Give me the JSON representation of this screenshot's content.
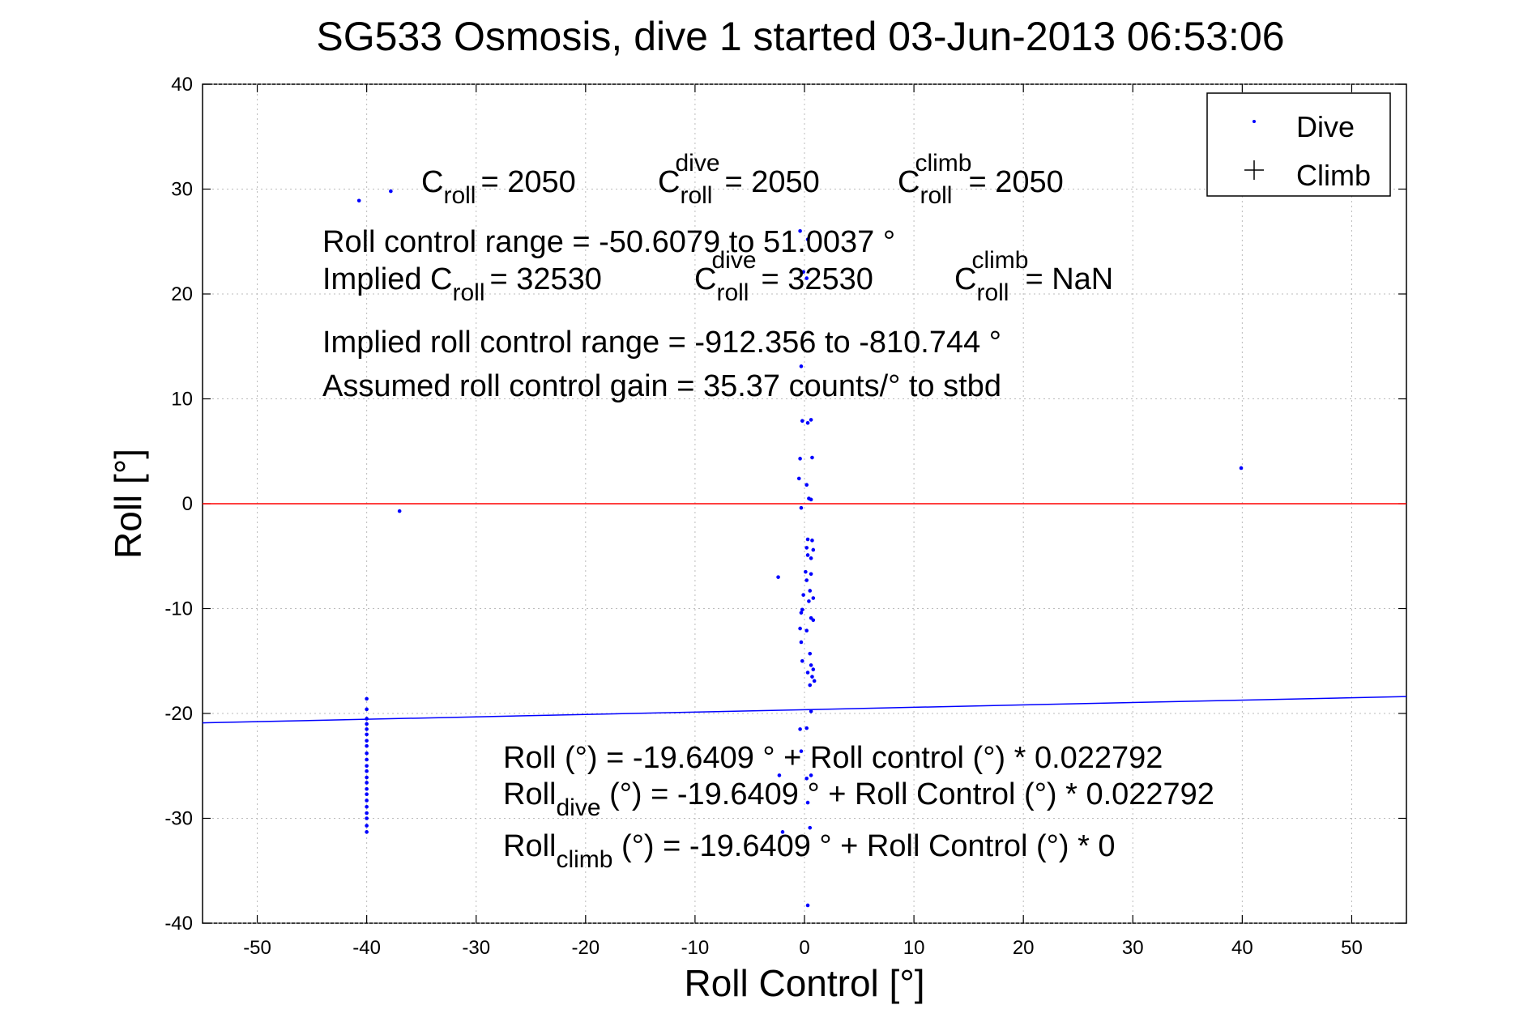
{
  "chart_data": {
    "type": "scatter",
    "title": "SG533 Osmosis, dive 1 started 03-Jun-2013 06:53:06",
    "xlabel": "Roll Control [°]",
    "ylabel": "Roll [°]",
    "xlim": [
      -55,
      55
    ],
    "ylim": [
      -40,
      40
    ],
    "xticks": [
      -50,
      -40,
      -30,
      -20,
      -10,
      0,
      10,
      20,
      30,
      40,
      50
    ],
    "yticks": [
      -40,
      -30,
      -20,
      -10,
      0,
      10,
      20,
      30,
      40
    ],
    "grid": true,
    "legend_position": "top-right",
    "legend": [
      {
        "label": "Dive",
        "marker": "dot",
        "color": "#0000ff"
      },
      {
        "label": "Climb",
        "marker": "plus",
        "color": "#000000"
      }
    ],
    "zero_line": {
      "y": 0,
      "color": "#ff0000"
    },
    "fit_line": {
      "intercept": -19.6409,
      "slope": 0.022792,
      "color": "#0000ff"
    },
    "series": [
      {
        "name": "Dive",
        "color": "#0000ff",
        "points": [
          [
            -40.7,
            28.9
          ],
          [
            -37.8,
            29.8
          ],
          [
            -37.0,
            -0.7
          ],
          [
            -2.4,
            -7.0
          ],
          [
            39.9,
            3.4
          ],
          [
            -0.4,
            26.0
          ],
          [
            0.3,
            25.2
          ],
          [
            -0.1,
            22.1
          ],
          [
            0.2,
            21.5
          ],
          [
            -0.3,
            13.1
          ],
          [
            -0.2,
            7.9
          ],
          [
            0.3,
            7.7
          ],
          [
            0.6,
            8.0
          ],
          [
            -0.4,
            4.3
          ],
          [
            0.7,
            4.4
          ],
          [
            -0.5,
            2.4
          ],
          [
            0.2,
            1.8
          ],
          [
            -0.3,
            -0.4
          ],
          [
            0.4,
            0.5
          ],
          [
            0.6,
            0.4
          ],
          [
            0.3,
            -3.4
          ],
          [
            0.7,
            -3.5
          ],
          [
            0.2,
            -4.2
          ],
          [
            0.8,
            -4.4
          ],
          [
            0.3,
            -4.9
          ],
          [
            0.6,
            -5.2
          ],
          [
            0.1,
            -6.5
          ],
          [
            0.6,
            -6.7
          ],
          [
            0.2,
            -7.3
          ],
          [
            0.5,
            -8.3
          ],
          [
            -0.1,
            -8.7
          ],
          [
            0.8,
            -9.0
          ],
          [
            0.4,
            -9.3
          ],
          [
            -0.2,
            -10.1
          ],
          [
            -0.3,
            -10.4
          ],
          [
            0.6,
            -10.9
          ],
          [
            0.8,
            -11.1
          ],
          [
            -0.4,
            -11.9
          ],
          [
            0.2,
            -12.1
          ],
          [
            -0.3,
            -13.2
          ],
          [
            0.5,
            -14.3
          ],
          [
            -0.2,
            -15.0
          ],
          [
            0.6,
            -15.4
          ],
          [
            0.8,
            -15.8
          ],
          [
            0.3,
            -16.1
          ],
          [
            0.7,
            -16.5
          ],
          [
            0.5,
            -17.3
          ],
          [
            0.9,
            -16.9
          ],
          [
            0.6,
            -19.8
          ],
          [
            -0.4,
            -21.5
          ],
          [
            0.2,
            -21.4
          ],
          [
            -0.3,
            -23.6
          ],
          [
            0.6,
            -25.9
          ],
          [
            0.2,
            -26.2
          ],
          [
            -2.3,
            -25.9
          ],
          [
            0.3,
            -28.5
          ],
          [
            -2.0,
            -31.3
          ],
          [
            0.5,
            -30.9
          ],
          [
            0.3,
            -38.3
          ],
          [
            -40.0,
            -18.6
          ],
          [
            -40.0,
            -19.6
          ],
          [
            -40.0,
            -20.5
          ],
          [
            -40.0,
            -21.0
          ],
          [
            -40.0,
            -21.5
          ],
          [
            -40.0,
            -22.0
          ],
          [
            -40.0,
            -22.6
          ],
          [
            -40.0,
            -23.1
          ],
          [
            -40.0,
            -23.8
          ],
          [
            -40.0,
            -24.4
          ],
          [
            -40.0,
            -25.0
          ],
          [
            -40.0,
            -25.5
          ],
          [
            -40.0,
            -26.1
          ],
          [
            -40.0,
            -26.6
          ],
          [
            -40.0,
            -27.2
          ],
          [
            -40.0,
            -27.7
          ],
          [
            -40.0,
            -28.3
          ],
          [
            -40.0,
            -28.9
          ],
          [
            -40.0,
            -29.5
          ],
          [
            -40.0,
            -30.0
          ],
          [
            -40.0,
            -30.7
          ],
          [
            -40.0,
            -31.3
          ]
        ]
      },
      {
        "name": "Climb",
        "color": "#000000",
        "points": []
      }
    ],
    "annotations": {
      "c_roll": {
        "base": "C",
        "sub": "roll",
        "value": "= 2050"
      },
      "c_roll_dive": {
        "base": "C",
        "sub": "roll",
        "sup": "dive",
        "value": "= 2050"
      },
      "c_roll_climb": {
        "base": "C",
        "sub": "roll",
        "sup": "climb",
        "value": "= 2050"
      },
      "range": "Roll control range = -50.6079 to 51.0037 °",
      "implied_c_roll": {
        "base": "Implied C",
        "sub": "roll",
        "value": "= 32530"
      },
      "implied_c_roll_dive": {
        "base": "C",
        "sub": "roll",
        "sup": "dive",
        "value": "= 32530"
      },
      "implied_c_roll_climb": {
        "base": "C",
        "sub": "roll",
        "sup": "climb",
        "value": "=  NaN"
      },
      "implied_range": "Implied roll control range = -912.356 to -810.744 °",
      "gain": "Assumed roll control gain = 35.37 counts/° to stbd",
      "fit_eq": "Roll (°) = -19.6409 ° + Roll control (°) * 0.022792",
      "fit_dive": {
        "base": "Roll",
        "sub": "dive",
        "value": " (°) = -19.6409 ° + Roll Control (°) * 0.022792"
      },
      "fit_climb": {
        "base": "Roll",
        "sub": "climb",
        "value": " (°) = -19.6409 ° + Roll Control (°) * 0"
      }
    }
  }
}
